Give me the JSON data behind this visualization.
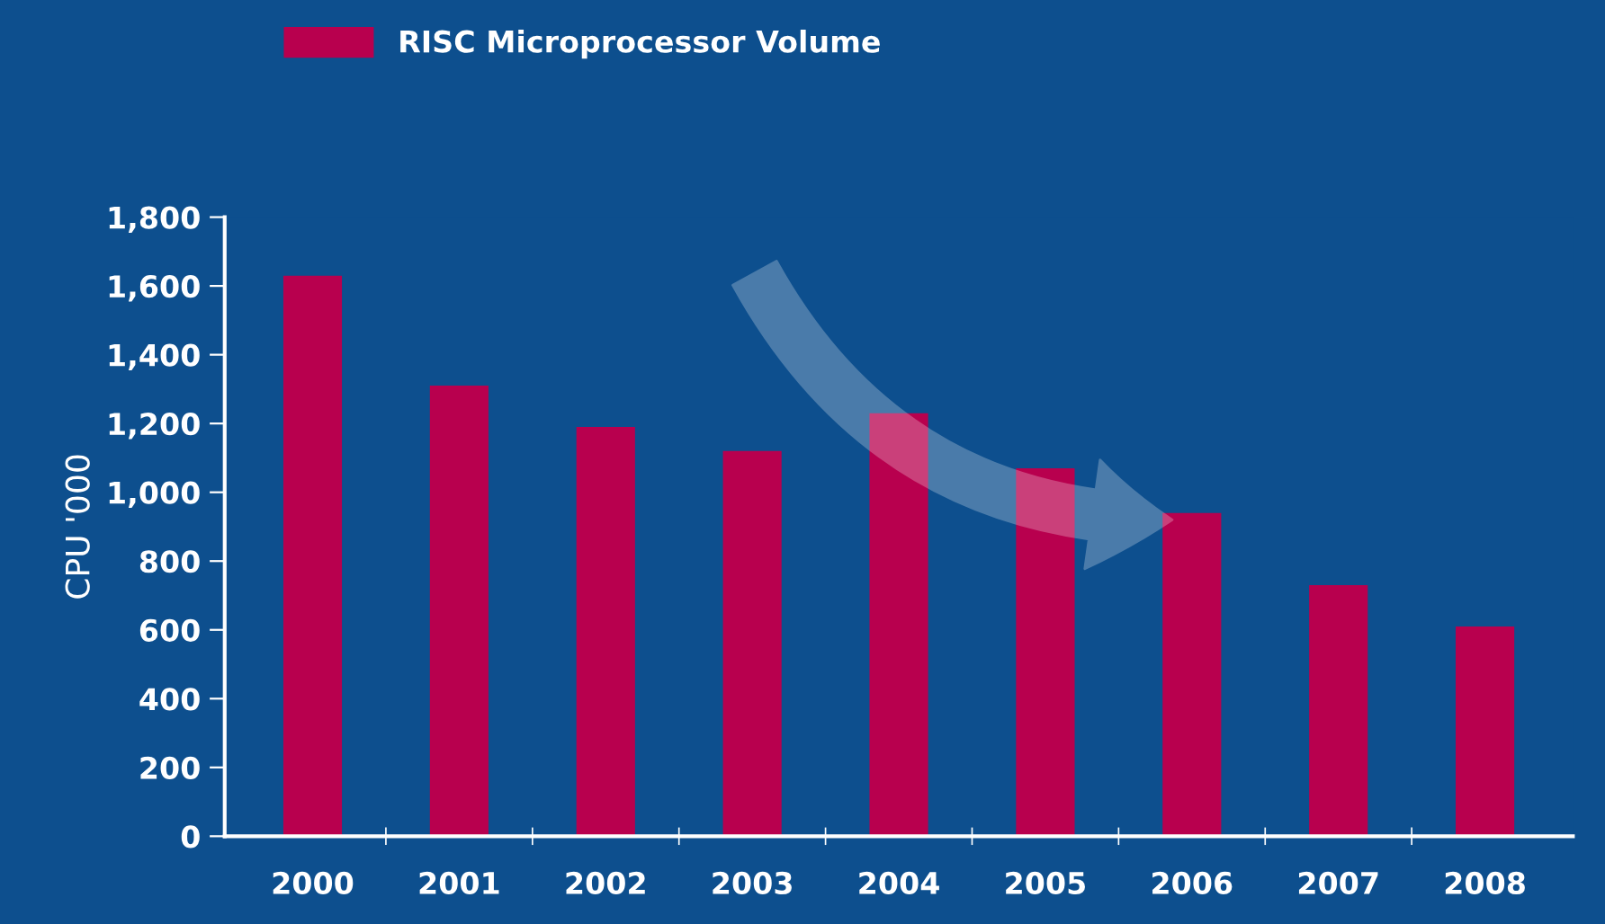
{
  "chart_data": {
    "type": "bar",
    "ylabel": "CPU '000",
    "categories": [
      "2000",
      "2001",
      "2002",
      "2003",
      "2004",
      "2005",
      "2006",
      "2007",
      "2008"
    ],
    "series": [
      {
        "name": "RISC Microprocessor Volume",
        "color": "#b8004e",
        "values": [
          1630,
          1310,
          1190,
          1120,
          1230,
          1070,
          940,
          730,
          610
        ]
      }
    ],
    "ylim": [
      0,
      1800
    ],
    "yticks": [
      0,
      {
        "value": 200,
        "label": "200"
      },
      {
        "value": 400,
        "label": "400"
      },
      {
        "value": 600,
        "label": "600"
      },
      {
        "value": 800,
        "label": "800"
      },
      {
        "value": 1000,
        "label": "1,000"
      },
      {
        "value": 1200,
        "label": "1,200"
      },
      {
        "value": 1400,
        "label": "1,400"
      },
      {
        "value": 1600,
        "label": "1,600"
      },
      {
        "value": 1800,
        "label": "1,800"
      }
    ],
    "grid": false,
    "legend": "top left"
  }
}
